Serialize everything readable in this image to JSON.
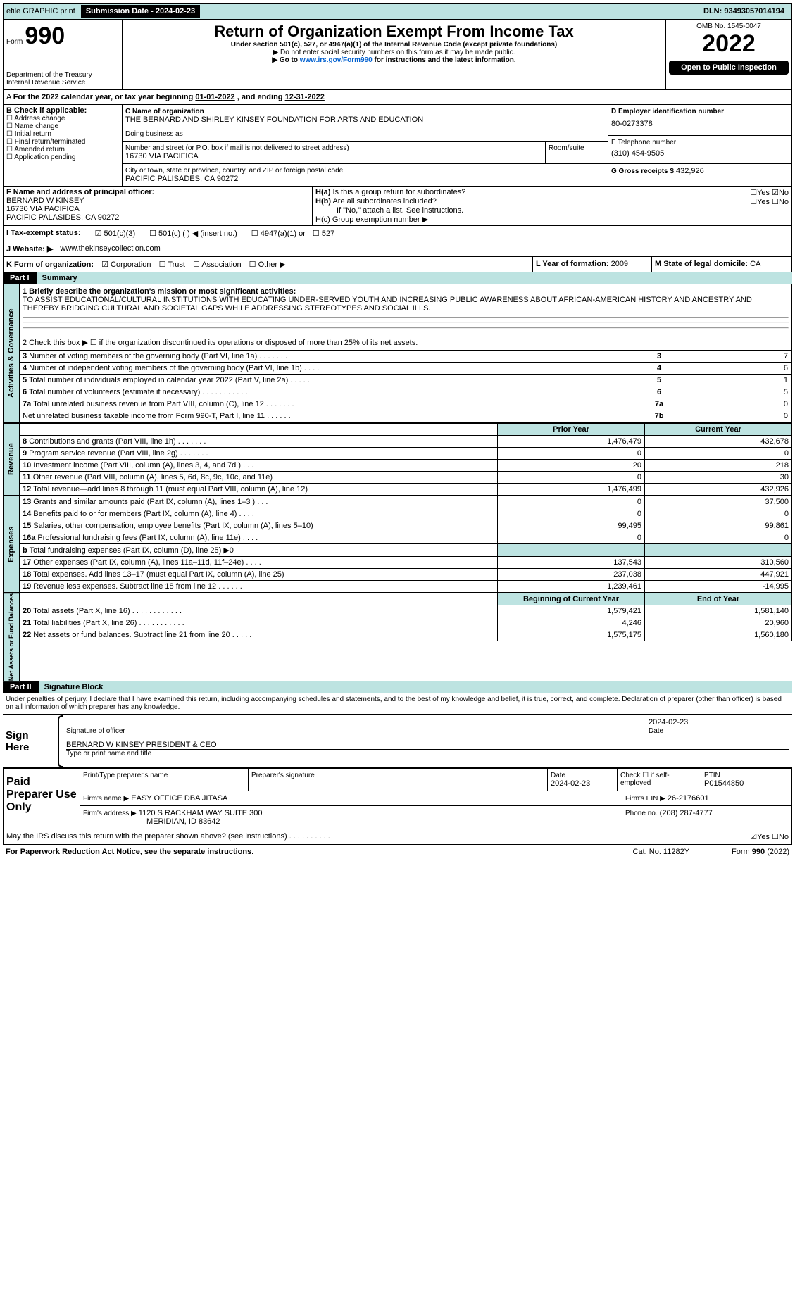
{
  "top_bar": {
    "efile": "efile GRAPHIC print",
    "submission_label": "Submission Date - 2024-02-23",
    "dln": "DLN: 93493057014194"
  },
  "header": {
    "form_word": "Form",
    "form_number": "990",
    "title": "Return of Organization Exempt From Income Tax",
    "subtitle": "Under section 501(c), 527, or 4947(a)(1) of the Internal Revenue Code (except private foundations)",
    "note1": "▶ Do not enter social security numbers on this form as it may be made public.",
    "note2_pre": "▶ Go to ",
    "note2_link": "www.irs.gov/Form990",
    "note2_post": " for instructions and the latest information.",
    "dept": "Department of the Treasury",
    "irs": "Internal Revenue Service",
    "omb": "OMB No. 1545-0047",
    "year": "2022",
    "open": "Open to Public Inspection"
  },
  "line_a": {
    "text_pre": "For the 2022 calendar year, or tax year beginning ",
    "begin": "01-01-2022",
    "mid": " , and ending ",
    "end": "12-31-2022"
  },
  "box_b": {
    "title": "B Check if applicable:",
    "items": [
      "Address change",
      "Name change",
      "Initial return",
      "Final return/terminated",
      "Amended return",
      "Application pending"
    ]
  },
  "box_c": {
    "label_name": "C Name of organization",
    "name": "THE BERNARD AND SHIRLEY KINSEY FOUNDATION FOR ARTS AND EDUCATION",
    "dba_label": "Doing business as",
    "dba": "",
    "street_label": "Number and street (or P.O. box if mail is not delivered to street address)",
    "room_label": "Room/suite",
    "street": "16730 VIA PACIFICA",
    "city_label": "City or town, state or province, country, and ZIP or foreign postal code",
    "city": "PACIFIC PALISADES, CA  90272"
  },
  "box_d": {
    "label": "D Employer identification number",
    "val": "80-0273378"
  },
  "box_e": {
    "label": "E Telephone number",
    "val": "(310) 454-9505"
  },
  "box_g": {
    "label": "G Gross receipts $",
    "val": "432,926"
  },
  "box_f": {
    "label": "F  Name and address of principal officer:",
    "line1": "BERNARD W KINSEY",
    "line2": "16730 VIA PACIFICA",
    "line3": "PACIFIC PALASIDES, CA  90272"
  },
  "box_h": {
    "a_label": "H(a)  Is this a group return for subordinates?",
    "b_label": "H(b)  Are all subordinates included?",
    "b_note": "If \"No,\" attach a list. See instructions.",
    "c_label": "H(c)  Group exemption number ▶",
    "yes": "Yes",
    "no": "No"
  },
  "line_i": {
    "label": "I  Tax-exempt status:",
    "opt1": "501(c)(3)",
    "opt2": "501(c) (   ) ◀ (insert no.)",
    "opt3": "4947(a)(1) or",
    "opt4": "527"
  },
  "line_j": {
    "label": "J  Website: ▶",
    "val": "www.thekinseycollection.com"
  },
  "line_k": {
    "label": "K Form of organization:",
    "opts": [
      "Corporation",
      "Trust",
      "Association",
      "Other ▶"
    ],
    "l_label": "L Year of formation:",
    "l_val": "2009",
    "m_label": "M State of legal domicile:",
    "m_val": "CA"
  },
  "part1": {
    "label": "Part I",
    "title": "Summary",
    "q1_label": "1  Briefly describe the organization's mission or most significant activities:",
    "q1_text": "TO ASSIST EDUCATIONAL/CULTURAL INSTITUTIONS WITH EDUCATING UNDER-SERVED YOUTH AND INCREASING PUBLIC AWARENESS ABOUT AFRICAN-AMERICAN HISTORY AND ANCESTRY AND THEREBY BRIDGING CULTURAL AND SOCIETAL GAPS WHILE ADDRESSING STEREOTYPES AND SOCIAL ILLS.",
    "q2": "2   Check this box ▶ ☐  if the organization discontinued its operations or disposed of more than 25% of its net assets.",
    "gov_rows": [
      {
        "n": "3",
        "t": "Number of voting members of the governing body (Part VI, line 1a)   .     .     .     .     .     .     .",
        "c": "3",
        "v": "7"
      },
      {
        "n": "4",
        "t": "Number of independent voting members of the governing body (Part VI, line 1b)    .     .     .     .",
        "c": "4",
        "v": "6"
      },
      {
        "n": "5",
        "t": "Total number of individuals employed in calendar year 2022 (Part V, line 2a)   .     .     .     .     .",
        "c": "5",
        "v": "1"
      },
      {
        "n": "6",
        "t": "Total number of volunteers (estimate if necessary)    .     .     .     .     .     .     .     .     .     .     .",
        "c": "6",
        "v": "5"
      },
      {
        "n": "7a",
        "t": "Total unrelated business revenue from Part VIII, column (C), line 12   .     .     .     .     .     .     .",
        "c": "7a",
        "v": "0"
      },
      {
        "n": "",
        "t": "Net unrelated business taxable income from Form 990-T, Part I, line 11    .     .     .     .     .     .",
        "c": "7b",
        "v": "0"
      }
    ],
    "hdr_prior": "Prior Year",
    "hdr_curr": "Current Year",
    "rev_rows": [
      {
        "n": "8",
        "t": "Contributions and grants (Part VIII, line 1h)    .     .     .     .     .     .     .",
        "p": "1,476,479",
        "c": "432,678"
      },
      {
        "n": "9",
        "t": "Program service revenue (Part VIII, line 2g)    .     .     .     .     .     .     .",
        "p": "0",
        "c": "0"
      },
      {
        "n": "10",
        "t": "Investment income (Part VIII, column (A), lines 3, 4, and 7d )    .     .     .",
        "p": "20",
        "c": "218"
      },
      {
        "n": "11",
        "t": "Other revenue (Part VIII, column (A), lines 5, 6d, 8c, 9c, 10c, and 11e)",
        "p": "0",
        "c": "30"
      },
      {
        "n": "12",
        "t": "Total revenue—add lines 8 through 11 (must equal Part VIII, column (A), line 12)",
        "p": "1,476,499",
        "c": "432,926"
      }
    ],
    "exp_rows": [
      {
        "n": "13",
        "t": "Grants and similar amounts paid (Part IX, column (A), lines 1–3 )   .     .     .",
        "p": "0",
        "c": "37,500"
      },
      {
        "n": "14",
        "t": "Benefits paid to or for members (Part IX, column (A), line 4)    .     .     .     .",
        "p": "0",
        "c": "0"
      },
      {
        "n": "15",
        "t": "Salaries, other compensation, employee benefits (Part IX, column (A), lines 5–10)",
        "p": "99,495",
        "c": "99,861"
      },
      {
        "n": "16a",
        "t": "Professional fundraising fees (Part IX, column (A), line 11e)    .     .     .     .",
        "p": "0",
        "c": "0"
      },
      {
        "n": "b",
        "t": "Total fundraising expenses (Part IX, column (D), line 25) ▶0",
        "p": "",
        "c": ""
      },
      {
        "n": "17",
        "t": "Other expenses (Part IX, column (A), lines 11a–11d, 11f–24e)    .     .     .     .",
        "p": "137,543",
        "c": "310,560"
      },
      {
        "n": "18",
        "t": "Total expenses. Add lines 13–17 (must equal Part IX, column (A), line 25)",
        "p": "237,038",
        "c": "447,921"
      },
      {
        "n": "19",
        "t": "Revenue less expenses. Subtract line 18 from line 12   .     .     .     .     .     .",
        "p": "1,239,461",
        "c": "-14,995"
      }
    ],
    "hdr_beg": "Beginning of Current Year",
    "hdr_end": "End of Year",
    "net_rows": [
      {
        "n": "20",
        "t": "Total assets (Part X, line 16)   .     .     .     .     .     .     .     .     .     .     .     .",
        "p": "1,579,421",
        "c": "1,581,140"
      },
      {
        "n": "21",
        "t": "Total liabilities (Part X, line 26)   .     .     .     .     .     .     .     .     .     .     .",
        "p": "4,246",
        "c": "20,960"
      },
      {
        "n": "22",
        "t": "Net assets or fund balances. Subtract line 21 from line 20   .     .     .     .     .",
        "p": "1,575,175",
        "c": "1,560,180"
      }
    ],
    "side_gov": "Activities & Governance",
    "side_rev": "Revenue",
    "side_exp": "Expenses",
    "side_net": "Net Assets or Fund Balances"
  },
  "part2": {
    "label": "Part II",
    "title": "Signature Block",
    "decl": "Under penalties of perjury, I declare that I have examined this return, including accompanying schedules and statements, and to the best of my knowledge and belief, it is true, correct, and complete. Declaration of preparer (other than officer) is based on all information of which preparer has any knowledge.",
    "sign_here": "Sign Here",
    "sig_officer": "Signature of officer",
    "sig_date": "2024-02-23",
    "date_label": "Date",
    "officer_name": "BERNARD W KINSEY PRESIDENT & CEO",
    "type_name": "Type or print name and title",
    "paid": "Paid Preparer Use Only",
    "h1": "Print/Type preparer's name",
    "h2": "Preparer's signature",
    "h3": "Date",
    "h3v": "2024-02-23",
    "h4": "Check ☐ if self-employed",
    "h5": "PTIN",
    "h5v": "P01544850",
    "firm_name_l": "Firm's name    ▶",
    "firm_name": "EASY OFFICE DBA JITASA",
    "firm_ein_l": "Firm's EIN ▶",
    "firm_ein": "26-2176601",
    "firm_addr_l": "Firm's address ▶",
    "firm_addr1": "1120 S RACKHAM WAY SUITE 300",
    "firm_addr2": "MERIDIAN, ID  83642",
    "phone_l": "Phone no.",
    "phone": "(208) 287-4777",
    "discuss": "May the IRS discuss this return with the preparer shown above? (see instructions)    .     .     .     .     .     .     .     .     .     .",
    "yes": "Yes",
    "no": "No"
  },
  "footer": {
    "left": "For Paperwork Reduction Act Notice, see the separate instructions.",
    "mid": "Cat. No. 11282Y",
    "right": "Form 990 (2022)"
  }
}
